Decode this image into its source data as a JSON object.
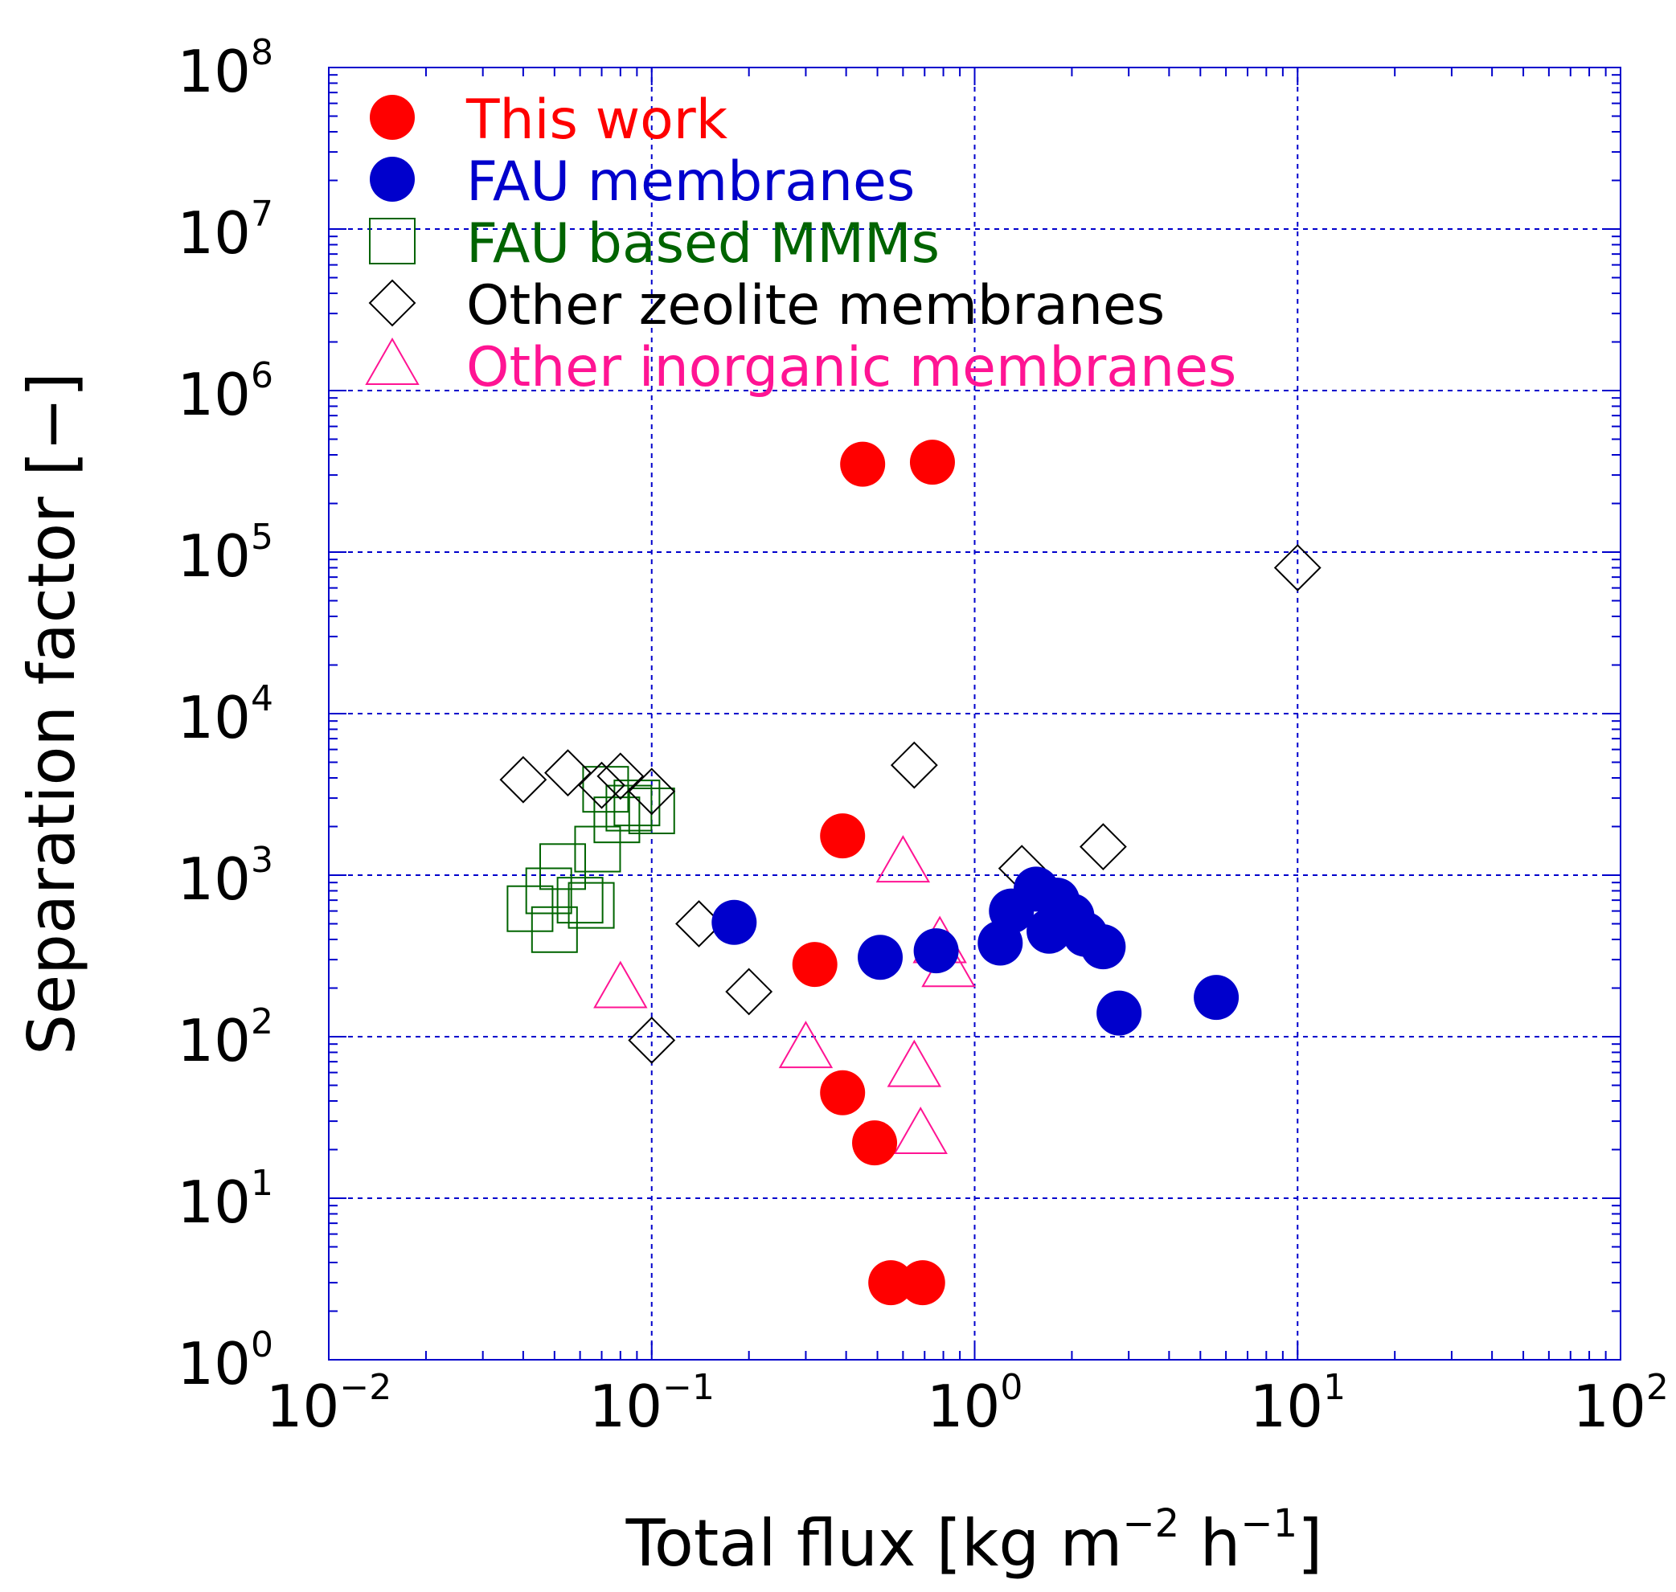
{
  "chart_data": {
    "type": "scatter",
    "title": "",
    "xlabel": "Total flux [kg m",
    "xlabel_sup1": "−2",
    "xlabel_mid": " h",
    "xlabel_sup2": "−1",
    "xlabel_end": "]",
    "ylabel": "Separation factor [−]",
    "xscale": "log",
    "yscale": "log",
    "xlim": [
      0.01,
      100
    ],
    "ylim": [
      1,
      100000000
    ],
    "x_tick_exponents": [
      -2,
      -1,
      0,
      1,
      2
    ],
    "y_tick_exponents": [
      0,
      1,
      2,
      3,
      4,
      5,
      6,
      7,
      8
    ],
    "tick_base": "10",
    "grid": true,
    "legend_position": "top-left",
    "colors": {
      "axis": "#0000cc",
      "grid": "#0000cc",
      "text": "#000000"
    },
    "series": [
      {
        "name": "This work",
        "marker": "filled-circle",
        "color": "#ff0000",
        "points": [
          [
            0.45,
            350000
          ],
          [
            0.74,
            360000
          ],
          [
            0.39,
            1750
          ],
          [
            0.32,
            280
          ],
          [
            0.39,
            45
          ],
          [
            0.49,
            22
          ],
          [
            0.55,
            3
          ],
          [
            0.69,
            3
          ]
        ]
      },
      {
        "name": "FAU membranes",
        "marker": "filled-circle",
        "color": "#0000cc",
        "points": [
          [
            0.18,
            510
          ],
          [
            0.51,
            310
          ],
          [
            0.76,
            340
          ],
          [
            1.2,
            380
          ],
          [
            1.3,
            600
          ],
          [
            1.55,
            820
          ],
          [
            1.7,
            450
          ],
          [
            1.8,
            700
          ],
          [
            2.0,
            560
          ],
          [
            2.2,
            430
          ],
          [
            2.5,
            360
          ],
          [
            2.8,
            140
          ],
          [
            5.6,
            175
          ]
        ]
      },
      {
        "name": "FAU based MMMs",
        "marker": "open-square",
        "color": "#006400",
        "points": [
          [
            0.042,
            620
          ],
          [
            0.048,
            800
          ],
          [
            0.05,
            460
          ],
          [
            0.053,
            1130
          ],
          [
            0.06,
            700
          ],
          [
            0.065,
            650
          ],
          [
            0.068,
            1450
          ],
          [
            0.072,
            3400
          ],
          [
            0.078,
            2200
          ],
          [
            0.085,
            2600
          ],
          [
            0.09,
            2800
          ],
          [
            0.1,
            2500
          ]
        ]
      },
      {
        "name": "Other zeolite membranes",
        "marker": "open-diamond",
        "color": "#000000",
        "points": [
          [
            0.04,
            3900
          ],
          [
            0.055,
            4300
          ],
          [
            0.07,
            3600
          ],
          [
            0.08,
            4100
          ],
          [
            0.1,
            3300
          ],
          [
            0.14,
            500
          ],
          [
            0.2,
            190
          ],
          [
            0.1,
            95
          ],
          [
            0.65,
            4800
          ],
          [
            1.4,
            1100
          ],
          [
            2.5,
            1500
          ],
          [
            10,
            80000
          ]
        ]
      },
      {
        "name": "Other inorganic membranes",
        "marker": "open-triangle",
        "color": "#ff1493",
        "points": [
          [
            0.08,
            200
          ],
          [
            0.3,
            85
          ],
          [
            0.6,
            1200
          ],
          [
            0.65,
            65
          ],
          [
            0.68,
            25
          ],
          [
            0.78,
            380
          ],
          [
            0.83,
            270
          ]
        ]
      }
    ]
  }
}
